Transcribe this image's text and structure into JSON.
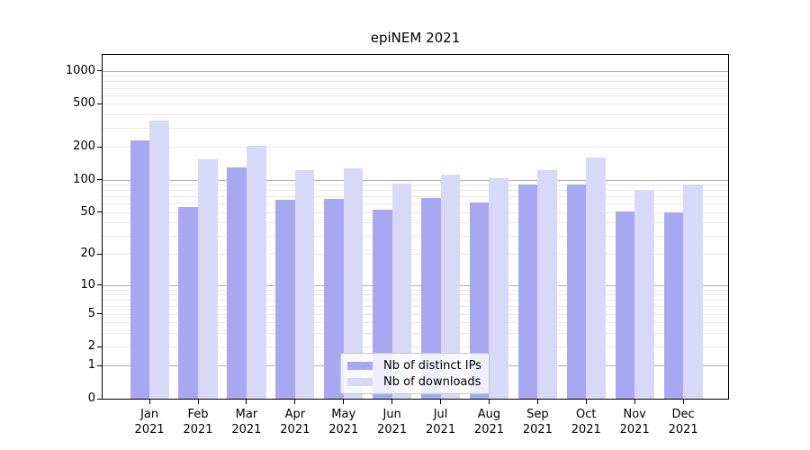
{
  "colors": {
    "background": "#ffffff",
    "axis": "#000000",
    "major_grid": "#b0b0b0",
    "minor_grid": "#e8e8e8",
    "legend_border": "#c8c8c8",
    "distinct_ips": "#a8a8f2",
    "downloads": "#d8d8f8"
  },
  "chart_data": {
    "type": "bar",
    "title": "epiNEM 2021",
    "categories": [
      "Jan 2021",
      "Feb 2021",
      "Mar 2021",
      "Apr 2021",
      "May 2021",
      "Jun 2021",
      "Jul 2021",
      "Aug 2021",
      "Sep 2021",
      "Oct 2021",
      "Nov 2021",
      "Dec 2021"
    ],
    "series": [
      {
        "name": "Nb of distinct IPs",
        "color": "#a8a8f2",
        "values": [
          230,
          56,
          130,
          65,
          66,
          53,
          68,
          62,
          90,
          91,
          51,
          50
        ]
      },
      {
        "name": "Nb of downloads",
        "color": "#d8d8f8",
        "values": [
          350,
          155,
          207,
          123,
          128,
          92,
          112,
          103,
          122,
          160,
          80,
          90
        ]
      }
    ],
    "xlabel": "",
    "ylabel": "",
    "y_axis": {
      "scale": "log10(value+1)",
      "ticks": [
        1000,
        500,
        200,
        100,
        50,
        20,
        10,
        5,
        2,
        1,
        0
      ],
      "major_gridlines": [
        1000,
        100,
        10,
        1
      ],
      "minor_gridline_bases": [
        2,
        3,
        4,
        5,
        6,
        7,
        8,
        9
      ]
    },
    "ylim": [
      0,
      1400
    ],
    "grid": true,
    "legend_position": "inside-bottom-center"
  }
}
